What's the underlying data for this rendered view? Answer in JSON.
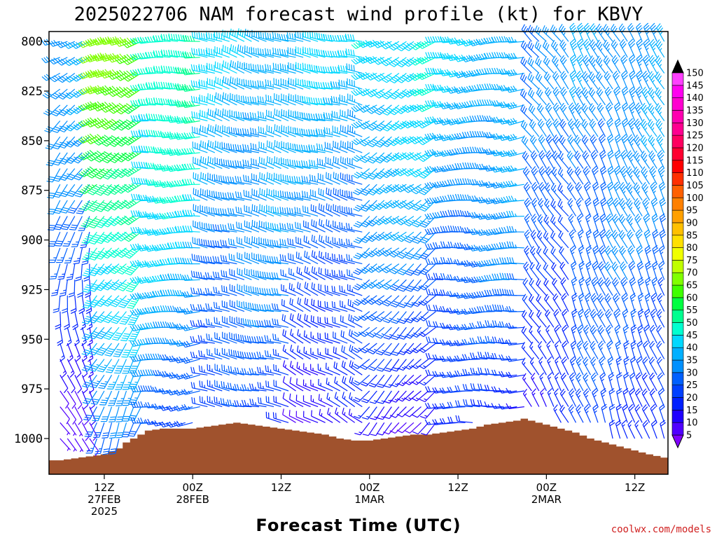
{
  "chart_data": {
    "type": "wind-barb-profile",
    "title": "2025022706 NAM forecast wind profile (kt) for KBVY",
    "xlabel": "Forecast Time (UTC)",
    "ylabel": "",
    "y_axis": {
      "inverted": true,
      "ylim": [
        795,
        1018
      ],
      "ticks": [
        {
          "value": 800,
          "label": "800"
        },
        {
          "value": 825,
          "label": "825"
        },
        {
          "value": 850,
          "label": "850"
        },
        {
          "value": 875,
          "label": "875"
        },
        {
          "value": 900,
          "label": "900"
        },
        {
          "value": 925,
          "label": "925"
        },
        {
          "value": 950,
          "label": "950"
        },
        {
          "value": 975,
          "label": "975"
        },
        {
          "value": 1000,
          "label": "1000"
        }
      ]
    },
    "x_axis": {
      "range_hours": [
        -1.5,
        82.5
      ],
      "ticks": [
        {
          "hour": 6,
          "lines": [
            "12Z",
            "27FEB",
            "2025"
          ]
        },
        {
          "hour": 18,
          "lines": [
            "00Z",
            "28FEB"
          ]
        },
        {
          "hour": 30,
          "lines": [
            "12Z"
          ]
        },
        {
          "hour": 42,
          "lines": [
            "00Z",
            "1MAR"
          ]
        },
        {
          "hour": 54,
          "lines": [
            "12Z"
          ]
        },
        {
          "hour": 66,
          "lines": [
            "00Z",
            "2MAR"
          ]
        },
        {
          "hour": 78,
          "lines": [
            "12Z"
          ]
        }
      ]
    },
    "grid": false,
    "colorbar": {
      "levels": [
        "5",
        "10",
        "15",
        "20",
        "25",
        "30",
        "35",
        "40",
        "45",
        "50",
        "55",
        "60",
        "65",
        "70",
        "75",
        "80",
        "85",
        "90",
        "95",
        "100",
        "105",
        "110",
        "115",
        "120",
        "125",
        "130",
        "135",
        "140",
        "145",
        "150"
      ],
      "colors": [
        "#8000ff",
        "#5000ff",
        "#2000ff",
        "#0020ff",
        "#0040ff",
        "#0060ff",
        "#0090ff",
        "#00b0ff",
        "#00d8ff",
        "#00ffd0",
        "#00ff90",
        "#00ff40",
        "#40ff00",
        "#80ff00",
        "#c0ff00",
        "#f0ff00",
        "#ffe000",
        "#ffc000",
        "#ffa000",
        "#ff8000",
        "#ff6000",
        "#ff3000",
        "#ff0000",
        "#ff0030",
        "#ff0060",
        "#ff0090",
        "#ff00b0",
        "#ff00d0",
        "#ff00f0",
        "#ff40ff"
      ]
    },
    "terrain_color": "#a0522d",
    "surface_pressure_hpa": [
      {
        "hour": -1.5,
        "p": 1011
      },
      {
        "hour": 0,
        "p": 1011
      },
      {
        "hour": 2,
        "p": 1010
      },
      {
        "hour": 4,
        "p": 1009
      },
      {
        "hour": 6,
        "p": 1008
      },
      {
        "hour": 8,
        "p": 1005
      },
      {
        "hour": 9,
        "p": 1002
      },
      {
        "hour": 10,
        "p": 1000
      },
      {
        "hour": 11,
        "p": 998
      },
      {
        "hour": 12,
        "p": 996
      },
      {
        "hour": 14,
        "p": 995
      },
      {
        "hour": 16,
        "p": 995
      },
      {
        "hour": 18,
        "p": 995
      },
      {
        "hour": 20,
        "p": 994
      },
      {
        "hour": 22,
        "p": 993
      },
      {
        "hour": 24,
        "p": 992
      },
      {
        "hour": 26,
        "p": 993
      },
      {
        "hour": 28,
        "p": 994
      },
      {
        "hour": 30,
        "p": 995
      },
      {
        "hour": 32,
        "p": 996
      },
      {
        "hour": 34,
        "p": 997
      },
      {
        "hour": 36,
        "p": 998
      },
      {
        "hour": 38,
        "p": 1000
      },
      {
        "hour": 40,
        "p": 1001
      },
      {
        "hour": 42,
        "p": 1001
      },
      {
        "hour": 44,
        "p": 1000
      },
      {
        "hour": 46,
        "p": 999
      },
      {
        "hour": 48,
        "p": 998
      },
      {
        "hour": 50,
        "p": 998
      },
      {
        "hour": 52,
        "p": 997
      },
      {
        "hour": 54,
        "p": 996
      },
      {
        "hour": 56,
        "p": 995
      },
      {
        "hour": 58,
        "p": 993
      },
      {
        "hour": 60,
        "p": 992
      },
      {
        "hour": 62,
        "p": 991
      },
      {
        "hour": 63,
        "p": 990
      },
      {
        "hour": 64,
        "p": 991
      },
      {
        "hour": 66,
        "p": 993
      },
      {
        "hour": 68,
        "p": 995
      },
      {
        "hour": 70,
        "p": 997
      },
      {
        "hour": 72,
        "p": 1000
      },
      {
        "hour": 74,
        "p": 1002
      },
      {
        "hour": 76,
        "p": 1004
      },
      {
        "hour": 78,
        "p": 1006
      },
      {
        "hour": 80,
        "p": 1008
      },
      {
        "hour": 82.5,
        "p": 1010
      }
    ],
    "barb_levels_hpa": [
      800,
      808,
      816,
      824,
      832,
      840,
      848,
      856,
      864,
      872,
      880,
      888,
      896,
      904,
      912,
      920,
      928,
      936,
      944,
      952,
      960,
      968,
      976,
      984,
      992,
      1000
    ],
    "barb_hour_step": 1,
    "wind_regimes": [
      {
        "from_hour": -1,
        "to_hour": 5,
        "low_dir_deg": 140,
        "high_dir_deg": 250,
        "low_speed_kt": 8,
        "high_speed_kt": 35
      },
      {
        "from_hour": 5,
        "to_hour": 12,
        "low_dir_deg": 200,
        "high_dir_deg": 250,
        "low_speed_kt": 25,
        "high_speed_kt": 65
      },
      {
        "from_hour": 12,
        "to_hour": 20,
        "low_dir_deg": 260,
        "high_dir_deg": 270,
        "low_speed_kt": 25,
        "high_speed_kt": 50
      },
      {
        "from_hour": 20,
        "to_hour": 32,
        "low_dir_deg": 280,
        "high_dir_deg": 290,
        "low_speed_kt": 20,
        "high_speed_kt": 40
      },
      {
        "from_hour": 32,
        "to_hour": 42,
        "low_dir_deg": 300,
        "high_dir_deg": 280,
        "low_speed_kt": 10,
        "high_speed_kt": 40
      },
      {
        "from_hour": 42,
        "to_hour": 52,
        "low_dir_deg": 220,
        "high_dir_deg": 240,
        "low_speed_kt": 10,
        "high_speed_kt": 45
      },
      {
        "from_hour": 52,
        "to_hour": 64,
        "low_dir_deg": 270,
        "high_dir_deg": 260,
        "low_speed_kt": 15,
        "high_speed_kt": 40
      },
      {
        "from_hour": 64,
        "to_hour": 70,
        "low_dir_deg": 330,
        "high_dir_deg": 320,
        "low_speed_kt": 15,
        "high_speed_kt": 30
      },
      {
        "from_hour": 70,
        "to_hour": 83,
        "low_dir_deg": 340,
        "high_dir_deg": 330,
        "low_speed_kt": 20,
        "high_speed_kt": 35
      }
    ],
    "credit": "coolwx.com/models"
  }
}
